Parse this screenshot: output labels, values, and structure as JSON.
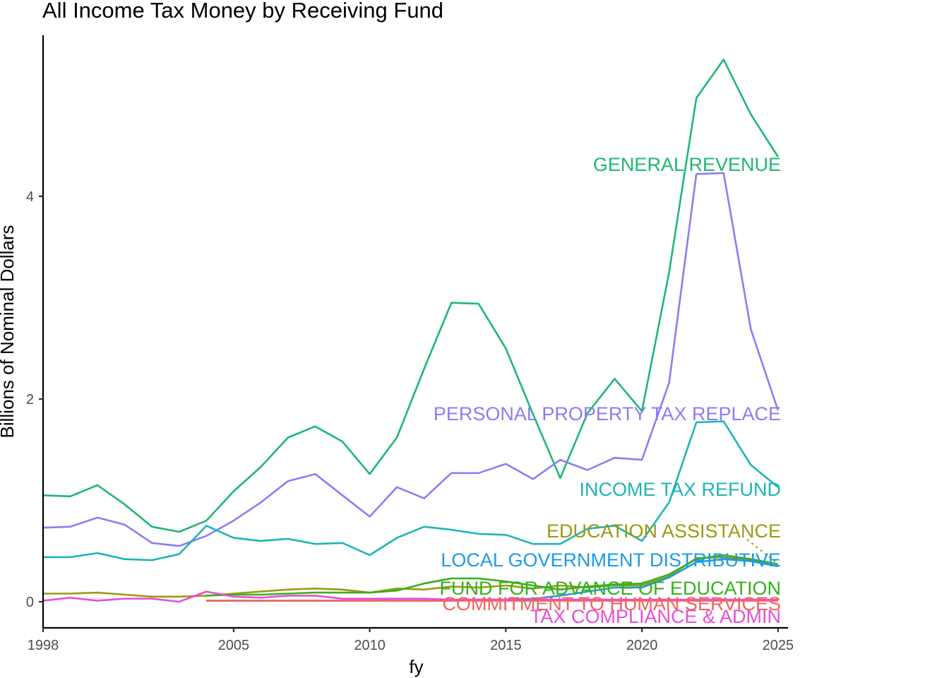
{
  "chart_data": {
    "type": "line",
    "title": "All Income Tax Money by Receiving Fund",
    "xlabel": "fy",
    "ylabel": "Billions of Nominal Dollars",
    "xlim": [
      1998,
      2025
    ],
    "ylim": [
      -0.25,
      5.7
    ],
    "xticks": [
      1998,
      2005,
      2010,
      2015,
      2020,
      2025
    ],
    "yticks": [
      0,
      2,
      4
    ],
    "grid": false,
    "legend": "direct labels at right end of lines",
    "series": [
      {
        "name": "GENERAL REVENUE",
        "color": "#1DB872",
        "x": [
          1998,
          1999,
          2000,
          2001,
          2002,
          2003,
          2004,
          2005,
          2006,
          2007,
          2008,
          2009,
          2010,
          2011,
          2012,
          2013,
          2014,
          2015,
          2016,
          2017,
          2018,
          2019,
          2020,
          2021,
          2022,
          2023,
          2024,
          2025
        ],
        "y": [
          1.05,
          1.04,
          1.15,
          0.96,
          0.74,
          0.69,
          0.8,
          1.09,
          1.33,
          1.62,
          1.73,
          1.58,
          1.26,
          1.62,
          2.3,
          2.95,
          2.94,
          2.5,
          1.85,
          1.22,
          1.86,
          2.2,
          1.88,
          3.25,
          4.97,
          5.35,
          4.81,
          4.39
        ]
      },
      {
        "name": "PERSONAL PROPERTY TAX REPLACE",
        "color": "#8C7DF2",
        "x": [
          1998,
          1999,
          2000,
          2001,
          2002,
          2003,
          2004,
          2005,
          2006,
          2007,
          2008,
          2009,
          2010,
          2011,
          2012,
          2013,
          2014,
          2015,
          2016,
          2017,
          2018,
          2019,
          2020,
          2021,
          2022,
          2023,
          2024,
          2025
        ],
        "y": [
          0.73,
          0.74,
          0.83,
          0.76,
          0.58,
          0.55,
          0.65,
          0.8,
          0.98,
          1.19,
          1.26,
          1.05,
          0.84,
          1.13,
          1.02,
          1.27,
          1.27,
          1.36,
          1.21,
          1.4,
          1.3,
          1.42,
          1.4,
          2.16,
          4.22,
          4.23,
          2.69,
          1.89
        ]
      },
      {
        "name": "INCOME TAX REFUND",
        "color": "#1DB5B5",
        "x": [
          1998,
          1999,
          2000,
          2001,
          2002,
          2003,
          2004,
          2005,
          2006,
          2007,
          2008,
          2009,
          2010,
          2011,
          2012,
          2013,
          2014,
          2015,
          2016,
          2017,
          2018,
          2019,
          2020,
          2021,
          2022,
          2023,
          2024,
          2025
        ],
        "y": [
          0.44,
          0.44,
          0.48,
          0.42,
          0.41,
          0.47,
          0.75,
          0.63,
          0.6,
          0.62,
          0.57,
          0.58,
          0.46,
          0.63,
          0.74,
          0.71,
          0.67,
          0.66,
          0.57,
          0.57,
          0.72,
          0.75,
          0.6,
          0.98,
          1.77,
          1.78,
          1.35,
          1.13
        ]
      },
      {
        "name": "EDUCATION ASSISTANCE",
        "color": "#9C9A0E",
        "x": [
          1998,
          1999,
          2000,
          2001,
          2002,
          2003,
          2004,
          2005,
          2006,
          2007,
          2008,
          2009,
          2010,
          2011,
          2012,
          2013,
          2014,
          2015,
          2016,
          2017,
          2018,
          2019,
          2020,
          2021,
          2022,
          2023,
          2024,
          2025
        ],
        "y": [
          0.08,
          0.08,
          0.09,
          0.07,
          0.05,
          0.05,
          0.06,
          0.08,
          0.1,
          0.12,
          0.13,
          0.12,
          0.09,
          0.13,
          0.12,
          0.15,
          0.14,
          0.16,
          0.13,
          0.16,
          0.14,
          0.16,
          0.16,
          0.25,
          0.43,
          0.44,
          0.41,
          0.37
        ]
      },
      {
        "name": "LOCAL GOVERNMENT DISTRIBUTIVE",
        "color": "#1C9BE6",
        "x": [
          2004,
          2005,
          2006,
          2007,
          2008,
          2009,
          2010,
          2011,
          2012,
          2013,
          2014,
          2015,
          2016,
          2017,
          2018,
          2019,
          2020,
          2021,
          2022,
          2023,
          2024,
          2025
        ],
        "y": [
          0.01,
          0.01,
          0.01,
          0.01,
          0.01,
          0.01,
          0.01,
          0.01,
          0.01,
          0.01,
          0.02,
          0.02,
          0.03,
          0.06,
          0.1,
          0.14,
          0.14,
          0.24,
          0.39,
          0.42,
          0.4,
          0.35
        ]
      },
      {
        "name": "FUND FOR ADVANCE OF EDUCATION",
        "color": "#34B11E",
        "x": [
          2004,
          2005,
          2006,
          2007,
          2008,
          2009,
          2010,
          2011,
          2012,
          2013,
          2014,
          2015,
          2016,
          2017,
          2018,
          2019,
          2020,
          2021,
          2022,
          2023,
          2024,
          2025
        ],
        "y": [
          0.06,
          0.07,
          0.07,
          0.08,
          0.09,
          0.09,
          0.09,
          0.11,
          0.18,
          0.23,
          0.23,
          0.2,
          0.16,
          0.12,
          0.15,
          0.17,
          0.18,
          0.27,
          0.42,
          0.46,
          0.42,
          0.37
        ]
      },
      {
        "name": "COMMITMENT TO HUMAN SERVICES",
        "color": "#F0665A",
        "x": [
          2004,
          2005,
          2006,
          2007,
          2008,
          2009,
          2010,
          2011,
          2012,
          2013,
          2014,
          2015,
          2016,
          2017,
          2018,
          2019,
          2020,
          2021,
          2022,
          2023,
          2024,
          2025
        ],
        "y": [
          0.01,
          0.01,
          0.01,
          0.01,
          0.01,
          0.01,
          0.01,
          0.01,
          0.01,
          0.01,
          0.01,
          0.01,
          0.01,
          0.01,
          0.01,
          0.01,
          0.01,
          0.01,
          0.01,
          0.01,
          0.01,
          0.01
        ]
      },
      {
        "name": "TAX COMPLIANCE & ADMIN",
        "color": "#E84FD6",
        "x": [
          1998,
          1999,
          2000,
          2001,
          2002,
          2003,
          2004,
          2005,
          2006,
          2007,
          2008,
          2009,
          2010,
          2011,
          2012,
          2013,
          2014,
          2015,
          2016,
          2017,
          2018,
          2019,
          2020,
          2021,
          2022,
          2023,
          2024,
          2025
        ],
        "y": [
          0.01,
          0.04,
          0.01,
          0.03,
          0.03,
          0.0,
          0.1,
          0.05,
          0.04,
          0.06,
          0.06,
          0.03,
          0.03,
          0.03,
          0.03,
          0.02,
          0.02,
          0.02,
          0.02,
          0.02,
          0.02,
          0.02,
          0.02,
          0.02,
          0.02,
          0.02,
          0.02,
          0.02
        ]
      }
    ]
  }
}
